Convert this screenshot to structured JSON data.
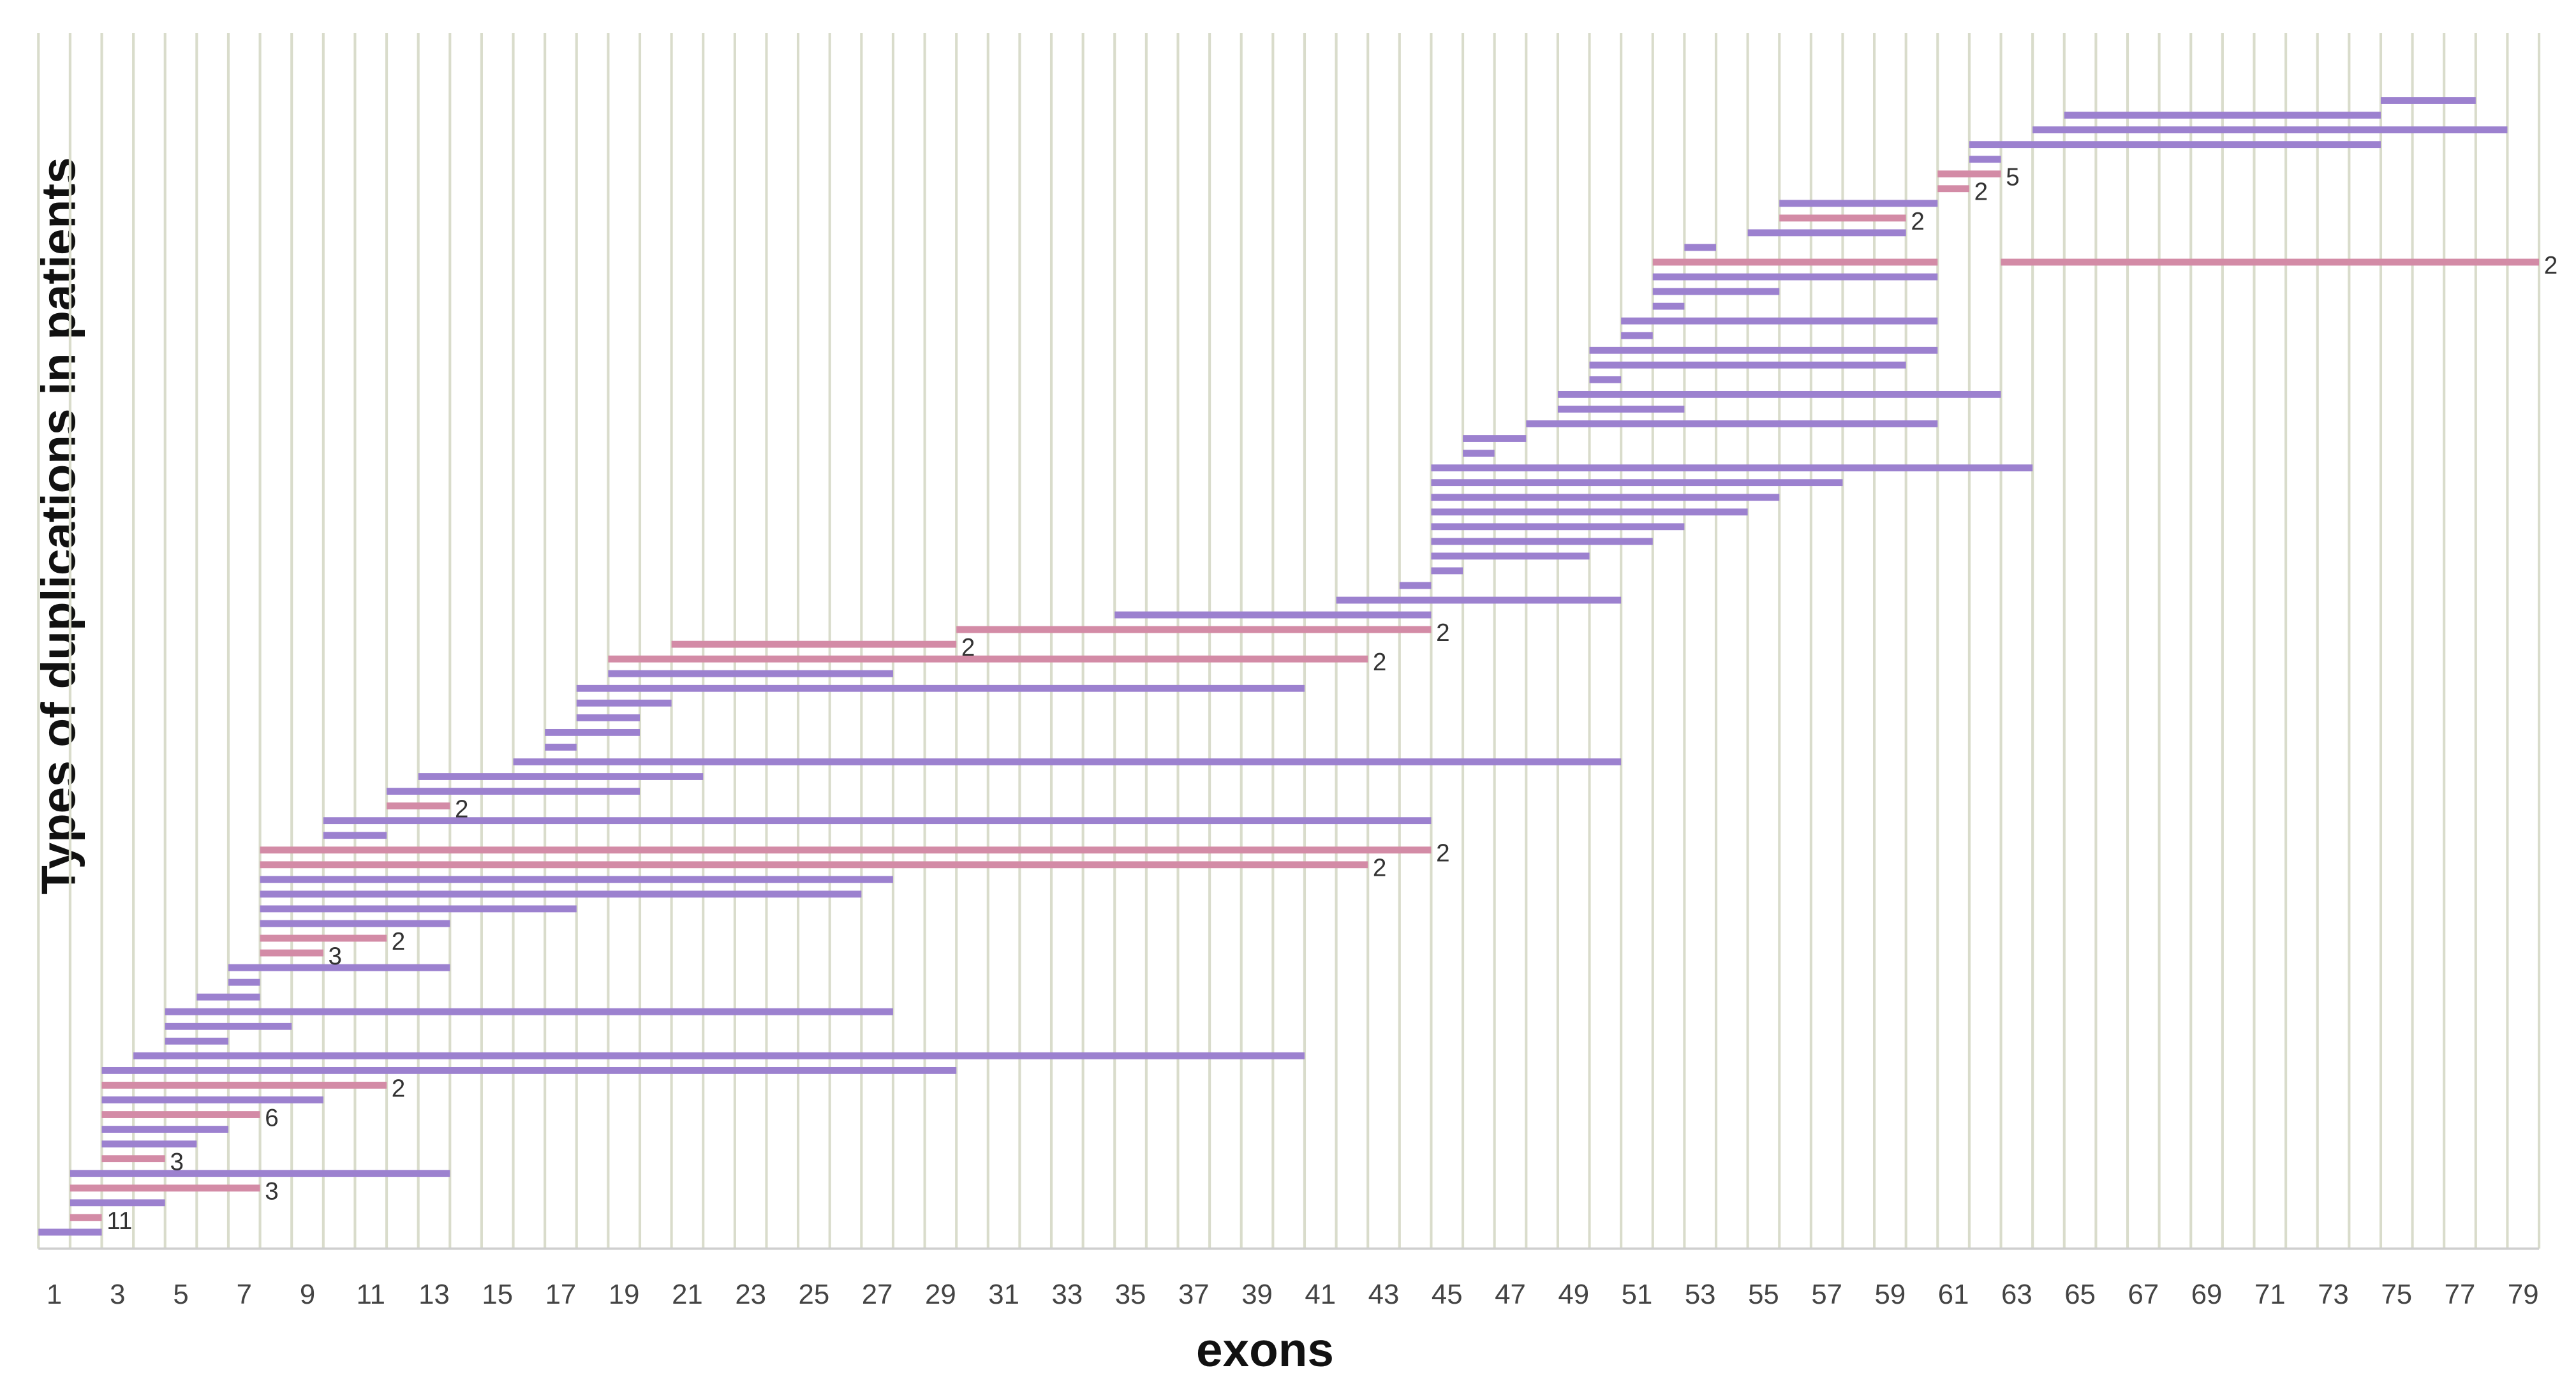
{
  "chart_data": {
    "type": "range",
    "title_y": "Types of duplications in patients",
    "title_x": "exons",
    "xlim": [
      0.5,
      79.5
    ],
    "xticks": [
      1,
      3,
      5,
      7,
      9,
      11,
      13,
      15,
      17,
      19,
      21,
      23,
      25,
      27,
      29,
      31,
      33,
      35,
      37,
      39,
      41,
      43,
      45,
      47,
      49,
      51,
      53,
      55,
      57,
      59,
      61,
      63,
      65,
      67,
      69,
      71,
      73,
      75,
      77,
      79
    ],
    "colors": [
      "#9c81cf",
      "#d38ba6"
    ],
    "grid": true,
    "grid_color": "#d9dccb",
    "bars": [
      {
        "spans": [
          [
            1,
            2
          ]
        ],
        "color": 0
      },
      {
        "spans": [
          [
            2,
            2
          ]
        ],
        "color": 1,
        "count": 11
      },
      {
        "spans": [
          [
            2,
            4
          ]
        ],
        "color": 0
      },
      {
        "spans": [
          [
            2,
            7
          ]
        ],
        "color": 1,
        "count": 3
      },
      {
        "spans": [
          [
            2,
            13
          ]
        ],
        "color": 0
      },
      {
        "spans": [
          [
            3,
            4
          ]
        ],
        "color": 1,
        "count": 3
      },
      {
        "spans": [
          [
            3,
            5
          ]
        ],
        "color": 0
      },
      {
        "spans": [
          [
            3,
            6
          ]
        ],
        "color": 0
      },
      {
        "spans": [
          [
            3,
            7
          ]
        ],
        "color": 1,
        "count": 6
      },
      {
        "spans": [
          [
            3,
            9
          ]
        ],
        "color": 0
      },
      {
        "spans": [
          [
            3,
            11
          ]
        ],
        "color": 1,
        "count": 2
      },
      {
        "spans": [
          [
            3,
            29
          ]
        ],
        "color": 0
      },
      {
        "spans": [
          [
            4,
            40
          ]
        ],
        "color": 0
      },
      {
        "spans": [
          [
            5,
            6
          ]
        ],
        "color": 0
      },
      {
        "spans": [
          [
            5,
            8
          ]
        ],
        "color": 0
      },
      {
        "spans": [
          [
            5,
            27
          ]
        ],
        "color": 0
      },
      {
        "spans": [
          [
            6,
            7
          ]
        ],
        "color": 0
      },
      {
        "spans": [
          [
            7,
            7
          ]
        ],
        "color": 0
      },
      {
        "spans": [
          [
            7,
            13
          ]
        ],
        "color": 0
      },
      {
        "spans": [
          [
            8,
            9
          ]
        ],
        "color": 1,
        "count": 3
      },
      {
        "spans": [
          [
            8,
            11
          ]
        ],
        "color": 1,
        "count": 2
      },
      {
        "spans": [
          [
            8,
            13
          ]
        ],
        "color": 0
      },
      {
        "spans": [
          [
            8,
            17
          ]
        ],
        "color": 0
      },
      {
        "spans": [
          [
            8,
            26
          ]
        ],
        "color": 0
      },
      {
        "spans": [
          [
            8,
            27
          ]
        ],
        "color": 0
      },
      {
        "spans": [
          [
            8,
            42
          ]
        ],
        "color": 1,
        "count": 2
      },
      {
        "spans": [
          [
            8,
            44
          ]
        ],
        "color": 1,
        "count": 2
      },
      {
        "spans": [
          [
            10,
            11
          ]
        ],
        "color": 0
      },
      {
        "spans": [
          [
            10,
            44
          ]
        ],
        "color": 0
      },
      {
        "spans": [
          [
            12,
            13
          ]
        ],
        "color": 1,
        "count": 2
      },
      {
        "spans": [
          [
            12,
            19
          ]
        ],
        "color": 0
      },
      {
        "spans": [
          [
            13,
            21
          ]
        ],
        "color": 0
      },
      {
        "spans": [
          [
            16,
            50
          ]
        ],
        "color": 0
      },
      {
        "spans": [
          [
            17,
            17
          ]
        ],
        "color": 0
      },
      {
        "spans": [
          [
            17,
            19
          ]
        ],
        "color": 0
      },
      {
        "spans": [
          [
            18,
            19
          ]
        ],
        "color": 0
      },
      {
        "spans": [
          [
            18,
            20
          ]
        ],
        "color": 0
      },
      {
        "spans": [
          [
            18,
            40
          ]
        ],
        "color": 0
      },
      {
        "spans": [
          [
            19,
            27
          ]
        ],
        "color": 0
      },
      {
        "spans": [
          [
            19,
            42
          ]
        ],
        "color": 1,
        "count": 2
      },
      {
        "spans": [
          [
            21,
            29
          ]
        ],
        "color": 1,
        "count": 2
      },
      {
        "spans": [
          [
            30,
            44
          ]
        ],
        "color": 1,
        "count": 2
      },
      {
        "spans": [
          [
            35,
            44
          ]
        ],
        "color": 0
      },
      {
        "spans": [
          [
            42,
            50
          ]
        ],
        "color": 0
      },
      {
        "spans": [
          [
            44,
            44
          ]
        ],
        "color": 0
      },
      {
        "spans": [
          [
            45,
            45
          ]
        ],
        "color": 0
      },
      {
        "spans": [
          [
            45,
            49
          ]
        ],
        "color": 0
      },
      {
        "spans": [
          [
            45,
            51
          ]
        ],
        "color": 0
      },
      {
        "spans": [
          [
            45,
            52
          ]
        ],
        "color": 0
      },
      {
        "spans": [
          [
            45,
            54
          ]
        ],
        "color": 0
      },
      {
        "spans": [
          [
            45,
            55
          ]
        ],
        "color": 0
      },
      {
        "spans": [
          [
            45,
            57
          ]
        ],
        "color": 0
      },
      {
        "spans": [
          [
            45,
            63
          ]
        ],
        "color": 0
      },
      {
        "spans": [
          [
            46,
            46
          ]
        ],
        "color": 0
      },
      {
        "spans": [
          [
            46,
            47
          ]
        ],
        "color": 0
      },
      {
        "spans": [
          [
            48,
            60
          ]
        ],
        "color": 0
      },
      {
        "spans": [
          [
            49,
            52
          ]
        ],
        "color": 0
      },
      {
        "spans": [
          [
            49,
            62
          ]
        ],
        "color": 0
      },
      {
        "spans": [
          [
            50,
            50
          ]
        ],
        "color": 0
      },
      {
        "spans": [
          [
            50,
            59
          ]
        ],
        "color": 0
      },
      {
        "spans": [
          [
            50,
            60
          ]
        ],
        "color": 0
      },
      {
        "spans": [
          [
            51,
            51
          ]
        ],
        "color": 0
      },
      {
        "spans": [
          [
            51,
            60
          ]
        ],
        "color": 0
      },
      {
        "spans": [
          [
            52,
            52
          ]
        ],
        "color": 0
      },
      {
        "spans": [
          [
            52,
            55
          ]
        ],
        "color": 0
      },
      {
        "spans": [
          [
            52,
            60
          ]
        ],
        "color": 0
      },
      {
        "spans": [
          [
            52,
            60
          ],
          [
            63,
            79
          ]
        ],
        "color": 1,
        "count": 2
      },
      {
        "spans": [
          [
            53,
            53
          ]
        ],
        "color": 0
      },
      {
        "spans": [
          [
            55,
            59
          ]
        ],
        "color": 0
      },
      {
        "spans": [
          [
            56,
            59
          ]
        ],
        "color": 1,
        "count": 2
      },
      {
        "spans": [
          [
            56,
            60
          ]
        ],
        "color": 0
      },
      {
        "spans": [
          [
            61,
            61
          ]
        ],
        "color": 1,
        "count": 2
      },
      {
        "spans": [
          [
            61,
            62
          ]
        ],
        "color": 1,
        "count": 5
      },
      {
        "spans": [
          [
            62,
            62
          ]
        ],
        "color": 0
      },
      {
        "spans": [
          [
            62,
            74
          ]
        ],
        "color": 0
      },
      {
        "spans": [
          [
            64,
            78
          ]
        ],
        "color": 0
      },
      {
        "spans": [
          [
            65,
            74
          ]
        ],
        "color": 0
      },
      {
        "spans": [
          [
            75,
            77
          ]
        ],
        "color": 0
      }
    ]
  }
}
